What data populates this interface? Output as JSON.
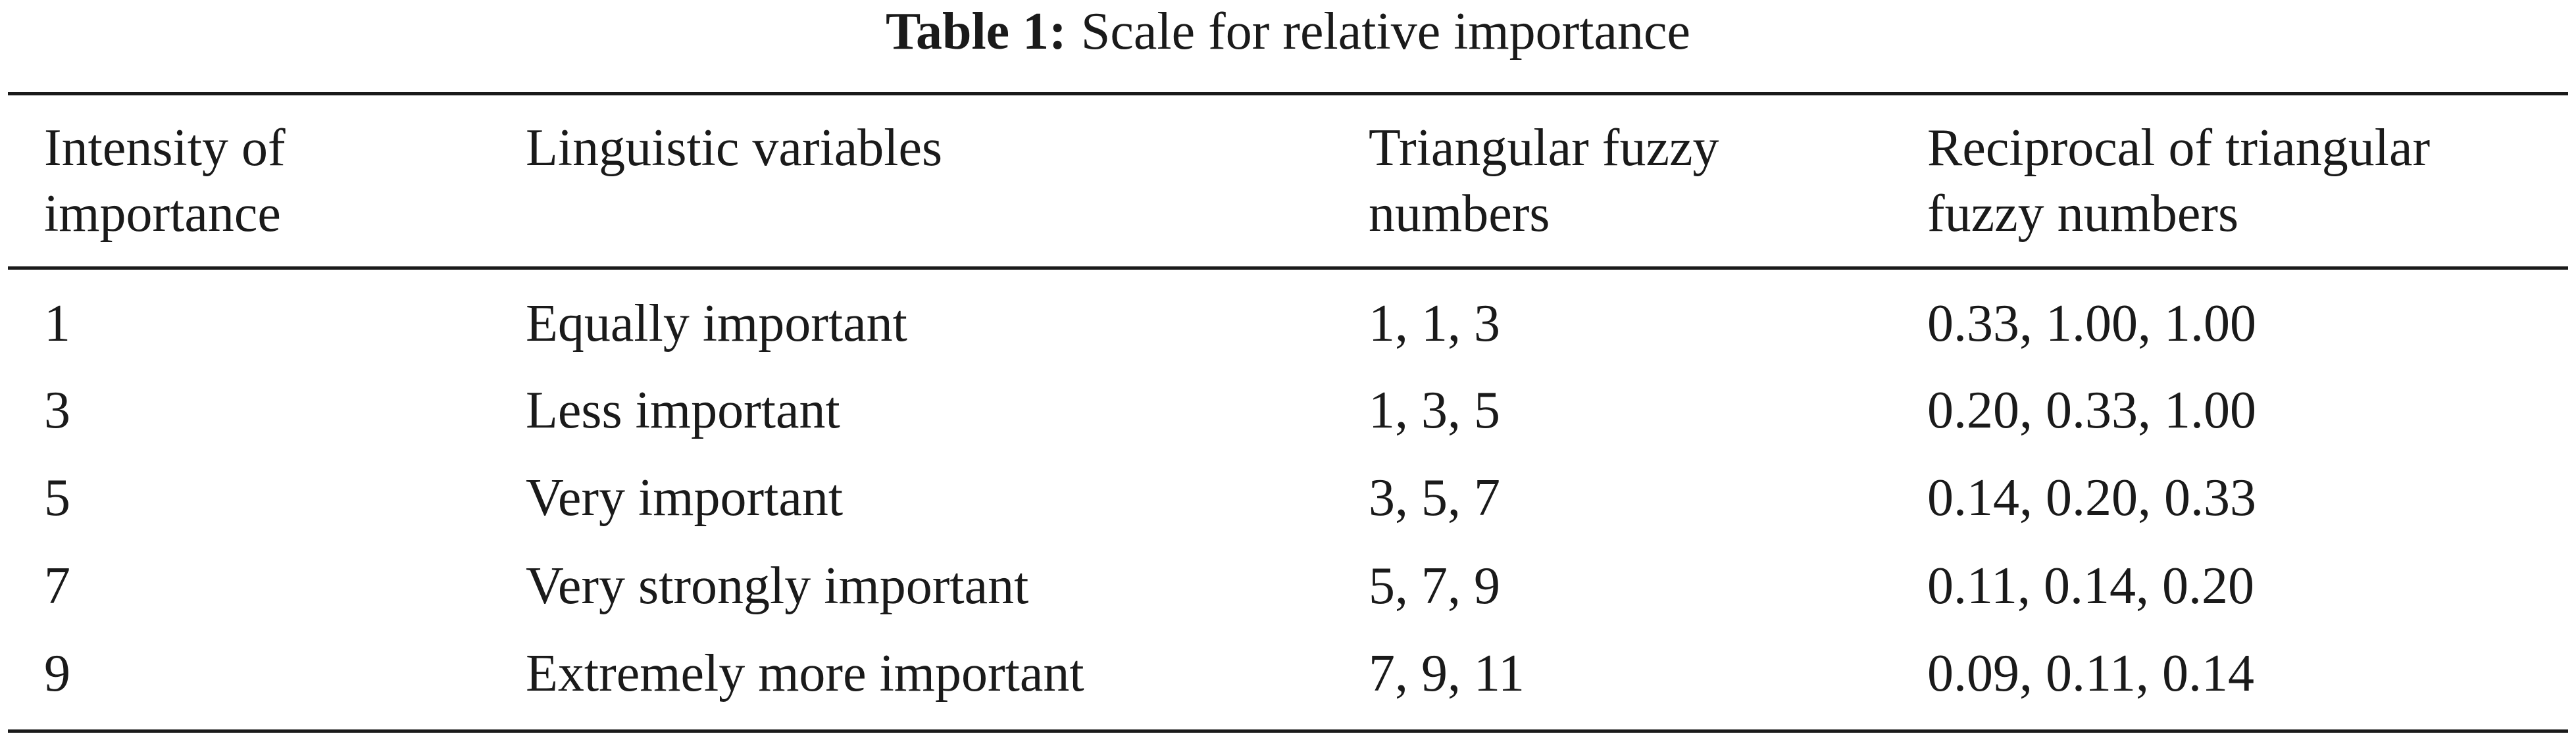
{
  "caption": {
    "label": "Table 1:",
    "text": "Scale for relative importance"
  },
  "table": {
    "headers": [
      "Intensity of importance",
      "Linguistic variables",
      "Triangular fuzzy numbers",
      "Reciprocal of triangular fuzzy numbers"
    ],
    "rows": [
      [
        "1",
        "Equally important",
        "1, 1, 3",
        "0.33, 1.00, 1.00"
      ],
      [
        "3",
        "Less important",
        "1, 3, 5",
        "0.20, 0.33, 1.00"
      ],
      [
        "5",
        "Very important",
        "3, 5, 7",
        "0.14, 0.20, 0.33"
      ],
      [
        "7",
        "Very strongly important",
        "5, 7, 9",
        "0.11, 0.14, 0.20"
      ],
      [
        "9",
        "Extremely more important",
        "7, 9, 11",
        "0.09, 0.11, 0.14"
      ]
    ]
  }
}
